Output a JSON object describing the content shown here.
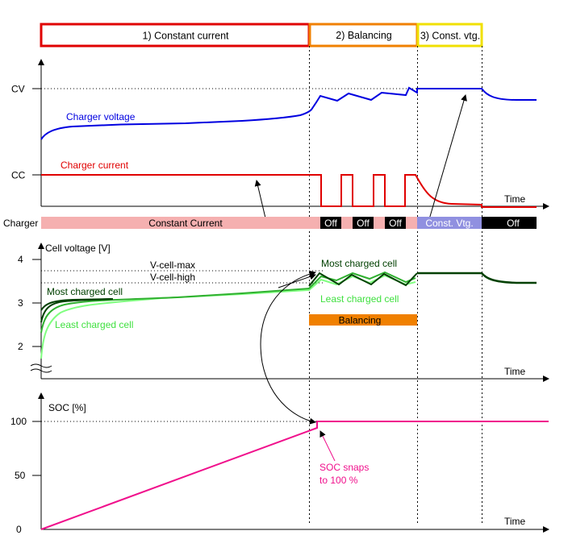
{
  "phases": [
    {
      "label": "1) Constant current",
      "color": "#e00000"
    },
    {
      "label": "2) Balancing",
      "color": "#f08000"
    },
    {
      "label": "3) Const. vtg.",
      "color": "#f0e000"
    }
  ],
  "charger_panel": {
    "y_ticks": [
      "CV",
      "CC"
    ],
    "x_axis_label": "Time",
    "voltage_label": "Charger voltage",
    "current_label": "Charger current",
    "voltage_color": "#0000e0",
    "current_color": "#e00000"
  },
  "charger_band": {
    "row_label": "Charger",
    "segments": [
      "Constant Current",
      "Off",
      "Off",
      "Off",
      "Const. Vtg.",
      "Off"
    ],
    "cc_color": "#f5b0b0",
    "off_color": "#000000",
    "cv_color": "#9090e0"
  },
  "cell_panel": {
    "y_axis_label": "Cell voltage [V]",
    "y_ticks": [
      "4",
      "3",
      "2"
    ],
    "x_axis_label": "Time",
    "v_cell_max_label": "V-cell-max",
    "v_cell_high_label": "V-cell-high",
    "most_charged_label": "Most charged cell",
    "least_charged_label": "Least charged cell",
    "balancing_label": "Balancing",
    "balancing_color": "#f08000",
    "most_color": "#004000",
    "mid_color": "#30b030",
    "least_color": "#80ff80"
  },
  "soc_panel": {
    "y_axis_label": "SOC [%]",
    "y_ticks": [
      "100",
      "50",
      "0"
    ],
    "x_axis_label": "Time",
    "snap_note_line1": "SOC snaps",
    "snap_note_line2": "to 100 %",
    "soc_color": "#f0108c"
  }
}
